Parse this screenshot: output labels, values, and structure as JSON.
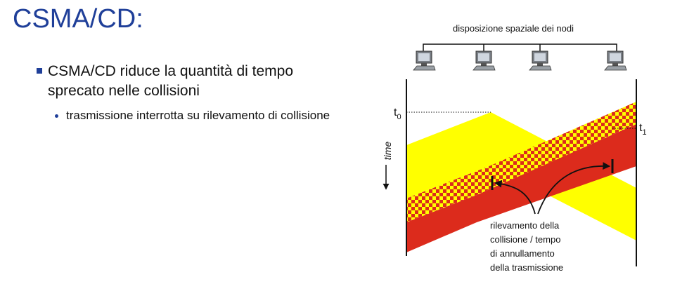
{
  "slide": {
    "title": "CSMA/CD:",
    "bullet": "CSMA/CD riduce la quantità di tempo sprecato nelle collisioni",
    "subbullet": "trasmissione interrotta su rilevamento di collisione"
  },
  "diagram": {
    "header": "disposizione spaziale dei nodi",
    "time_label": "time",
    "t0_label": "t",
    "t0_sub": "0",
    "t1_label": "t",
    "t1_sub": "1",
    "callout": [
      "rilevamento della",
      "collisione / tempo",
      "di annullamento",
      "della trasmissione"
    ],
    "colors": {
      "yellow": "#ffff00",
      "red": "#dc2b1c",
      "line": "#111111"
    },
    "icons": [
      "computer-icon",
      "computer-icon",
      "computer-icon",
      "computer-icon"
    ]
  }
}
